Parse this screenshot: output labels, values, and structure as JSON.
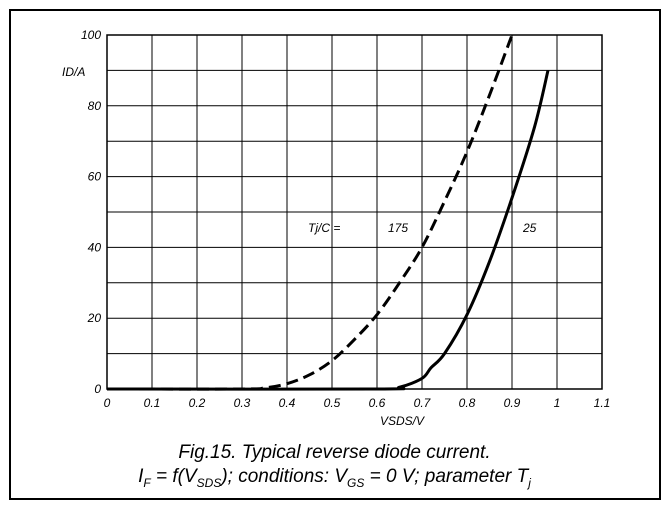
{
  "chart_data": {
    "type": "line",
    "ylabel": "ID/A",
    "xlabel": "VSDS/V",
    "xlim": [
      0,
      1.1
    ],
    "ylim": [
      0,
      100
    ],
    "x_ticks": [
      "0",
      "0.1",
      "0.2",
      "0.3",
      "0.4",
      "0.5",
      "0.6",
      "0.7",
      "0.8",
      "0.9",
      "1",
      "1.1"
    ],
    "y_ticks": [
      "0",
      "20",
      "40",
      "60",
      "80",
      "100"
    ],
    "grid": true,
    "annotation": "Tj/C =",
    "series": [
      {
        "name": "175",
        "style": "dashed",
        "x": [
          0,
          0.3,
          0.35,
          0.4,
          0.45,
          0.5,
          0.55,
          0.6,
          0.65,
          0.7,
          0.75,
          0.8,
          0.85,
          0.9
        ],
        "y": [
          0,
          0,
          0.3,
          1.5,
          4,
          8,
          14,
          21,
          30,
          40,
          53,
          67,
          83,
          100
        ]
      },
      {
        "name": "25",
        "style": "solid",
        "x": [
          0,
          0.6,
          0.65,
          0.7,
          0.72,
          0.75,
          0.8,
          0.85,
          0.9,
          0.95,
          0.98
        ],
        "y": [
          0,
          0,
          0.5,
          3,
          6,
          10,
          21,
          36,
          54,
          74,
          90
        ]
      }
    ]
  },
  "caption": {
    "line1": "Fig.15.   Typical reverse diode current.",
    "line2_prefix": "I",
    "line2_sub1": "F",
    "line2_mid1": " = f(V",
    "line2_sub2": "SDS",
    "line2_mid2": "); conditions: V",
    "line2_sub3": "GS",
    "line2_mid3": " = 0 V; parameter T",
    "line2_sub4": "j"
  }
}
